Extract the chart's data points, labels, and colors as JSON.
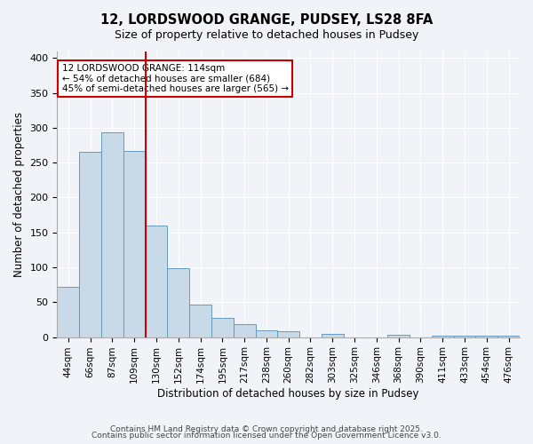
{
  "title": "12, LORDSWOOD GRANGE, PUDSEY, LS28 8FA",
  "subtitle": "Size of property relative to detached houses in Pudsey",
  "xlabel": "Distribution of detached houses by size in Pudsey",
  "ylabel": "Number of detached properties",
  "bar_labels": [
    "44sqm",
    "66sqm",
    "87sqm",
    "109sqm",
    "130sqm",
    "152sqm",
    "174sqm",
    "195sqm",
    "217sqm",
    "238sqm",
    "260sqm",
    "282sqm",
    "303sqm",
    "325sqm",
    "346sqm",
    "368sqm",
    "390sqm",
    "411sqm",
    "433sqm",
    "454sqm",
    "476sqm"
  ],
  "bar_values": [
    72,
    265,
    294,
    267,
    160,
    99,
    47,
    27,
    19,
    10,
    9,
    0,
    5,
    0,
    0,
    3,
    0,
    2,
    2,
    2,
    2
  ],
  "bar_color": "#c8d9e8",
  "bar_edge_color": "#6699bb",
  "vline_x": 3,
  "vline_color": "#cc0000",
  "annotation_title": "12 LORDSWOOD GRANGE: 114sqm",
  "annotation_line1": "← 54% of detached houses are smaller (684)",
  "annotation_line2": "45% of semi-detached houses are larger (565) →",
  "annotation_box_color": "#ffffff",
  "annotation_box_edge": "#cc0000",
  "ylim": [
    0,
    410
  ],
  "yticks": [
    0,
    50,
    100,
    150,
    200,
    250,
    300,
    350,
    400
  ],
  "bg_color": "#f0f4f8",
  "footer_line1": "Contains HM Land Registry data © Crown copyright and database right 2025.",
  "footer_line2": "Contains public sector information licensed under the Open Government Licence v3.0."
}
